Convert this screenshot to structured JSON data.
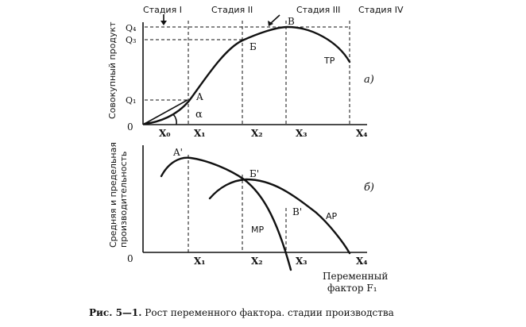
{
  "stages": [
    "Стадия I",
    "Стадия II",
    "Стадия III",
    "Стадия IV"
  ],
  "top_chart": {
    "ylabel": "Совокупный продукт",
    "y_ticks": [
      "Q₄",
      "Q₃",
      "Q₁"
    ],
    "x_ticks": [
      "X₀",
      "X₁",
      "X₂",
      "X₃",
      "X₄"
    ],
    "origin": "0",
    "points": [
      "A",
      "Б",
      "В"
    ],
    "angle": "α",
    "curve_label": "ТР",
    "panel_label": "а)"
  },
  "bottom_chart": {
    "ylabel_line1": "Средняя и предельная",
    "ylabel_line2": "производительность",
    "x_ticks": [
      "X₁",
      "X₂",
      "X₃",
      "X₄"
    ],
    "origin": "0",
    "points": [
      "A'",
      "Б'",
      "В'"
    ],
    "curve_labels": [
      "МР",
      "АР"
    ],
    "panel_label": "б)",
    "xlabel_line1": "Переменный",
    "xlabel_line2": "фактор F₁"
  },
  "caption": {
    "bold": "Рис. 5—1.",
    "text": " Рост переменного фактора. стадии производства"
  }
}
